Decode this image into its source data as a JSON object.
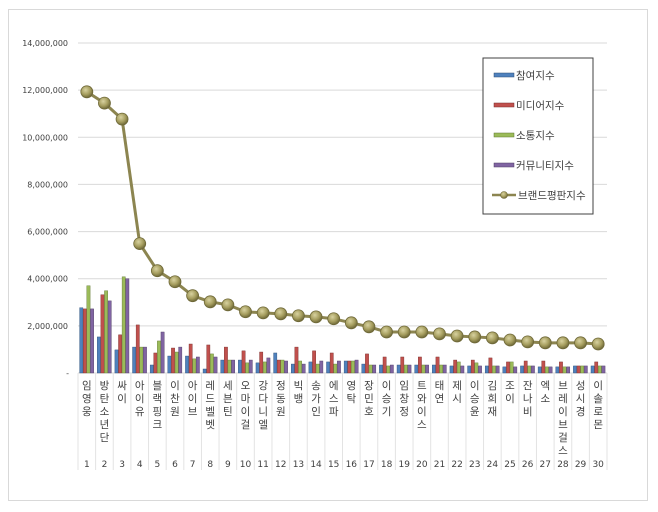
{
  "chart_data": {
    "type": "bar",
    "title": "",
    "xlabel": "",
    "ylabel": "",
    "ylim": [
      0,
      14000000
    ],
    "yticks": [
      "-",
      "2,000,000",
      "4,000,000",
      "6,000,000",
      "8,000,000",
      "10,000,000",
      "12,000,000",
      "14,000,000"
    ],
    "grid": true,
    "legend_position": "upper right",
    "categories": [
      "임영웅",
      "방탄소년단",
      "싸이",
      "아이유",
      "블랙핑크",
      "이찬원",
      "아이브",
      "레드벨벳",
      "세븐틴",
      "오마이걸",
      "강다니엘",
      "정동원",
      "빅뱅",
      "송가인",
      "에스파",
      "영탁",
      "장민호",
      "이승기",
      "임창정",
      "트와이스",
      "태연",
      "제시",
      "이승윤",
      "김희재",
      "조이",
      "잔나비",
      "엑소",
      "브레이브걸스",
      "성시경",
      "이솔로몬"
    ],
    "ranks": [
      "1",
      "2",
      "3",
      "4",
      "5",
      "6",
      "7",
      "8",
      "9",
      "10",
      "11",
      "12",
      "13",
      "14",
      "15",
      "16",
      "17",
      "18",
      "19",
      "20",
      "21",
      "22",
      "23",
      "24",
      "25",
      "26",
      "27",
      "28",
      "29",
      "30"
    ],
    "series": [
      {
        "name": "참여지수",
        "type": "bar",
        "color": "#4f81bd",
        "values": [
          2770000,
          1530000,
          980000,
          1100000,
          340000,
          720000,
          720000,
          170000,
          550000,
          550000,
          430000,
          850000,
          380000,
          470000,
          470000,
          510000,
          380000,
          340000,
          340000,
          340000,
          340000,
          300000,
          300000,
          300000,
          260000,
          300000,
          260000,
          260000,
          300000,
          300000
        ]
      },
      {
        "name": "미디어지수",
        "type": "bar",
        "color": "#c0504d",
        "values": [
          2720000,
          3320000,
          1620000,
          2040000,
          850000,
          1060000,
          1230000,
          1190000,
          1100000,
          940000,
          890000,
          550000,
          1100000,
          940000,
          850000,
          510000,
          810000,
          680000,
          680000,
          680000,
          680000,
          550000,
          550000,
          640000,
          470000,
          510000,
          510000,
          470000,
          300000,
          470000
        ]
      },
      {
        "name": "소통지수",
        "type": "bar",
        "color": "#9bbb59",
        "values": [
          3700000,
          3490000,
          4080000,
          1100000,
          1360000,
          890000,
          600000,
          810000,
          550000,
          430000,
          470000,
          550000,
          510000,
          380000,
          380000,
          510000,
          340000,
          300000,
          340000,
          340000,
          340000,
          470000,
          430000,
          300000,
          470000,
          300000,
          260000,
          260000,
          300000,
          300000
        ]
      },
      {
        "name": "커뮤니티지수",
        "type": "bar",
        "color": "#8064a2",
        "values": [
          2720000,
          3060000,
          4000000,
          1100000,
          1740000,
          1100000,
          680000,
          680000,
          550000,
          550000,
          640000,
          510000,
          380000,
          510000,
          510000,
          550000,
          340000,
          340000,
          340000,
          340000,
          340000,
          300000,
          300000,
          300000,
          260000,
          300000,
          260000,
          260000,
          300000,
          300000
        ]
      },
      {
        "name": "브랜드평판지수",
        "type": "line",
        "color": "#8c8550",
        "marker_color": "#a59d5e",
        "values": [
          11930000,
          11450000,
          10770000,
          5490000,
          4340000,
          3870000,
          3280000,
          3020000,
          2890000,
          2600000,
          2550000,
          2510000,
          2430000,
          2380000,
          2300000,
          2130000,
          1960000,
          1740000,
          1740000,
          1740000,
          1660000,
          1570000,
          1530000,
          1490000,
          1400000,
          1320000,
          1280000,
          1280000,
          1280000,
          1230000
        ]
      }
    ]
  }
}
